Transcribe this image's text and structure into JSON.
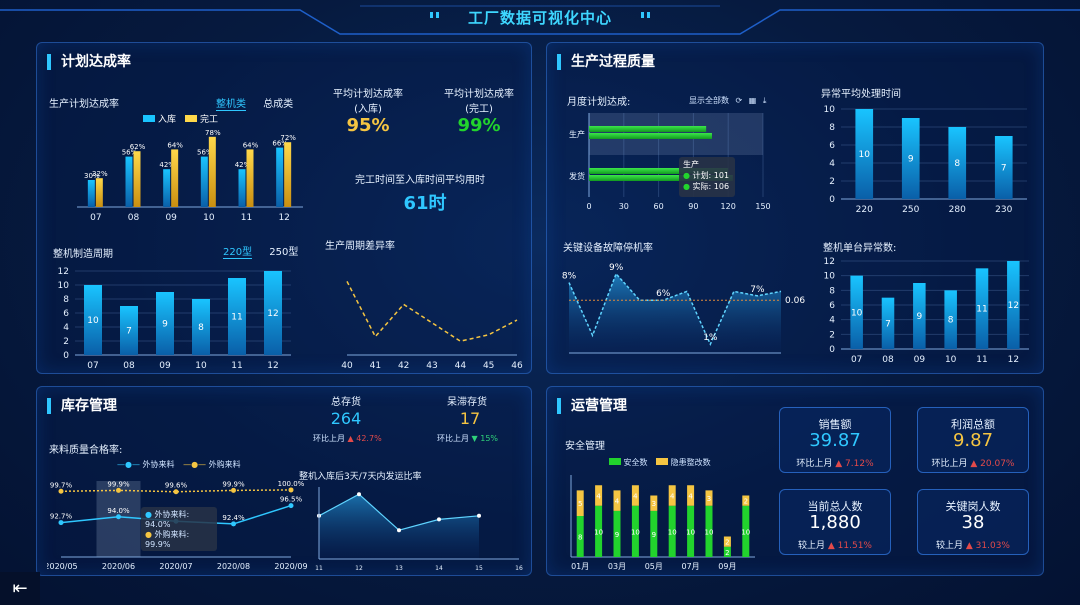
{
  "title": "工厂数据可视化中心",
  "colors": {
    "cyan": "#2fc7ff",
    "yellow": "#f5c542",
    "green": "#22d32d",
    "accent": "#3ed7ff"
  },
  "plan": {
    "heading": "计划达成率",
    "rate_chart": {
      "label": "生产计划达成率",
      "tabs": [
        "整机类",
        "总成类"
      ],
      "legend": [
        "入库",
        "完工"
      ]
    },
    "avg_in": {
      "label": "平均计划达成率\n(入库)",
      "value": "95%"
    },
    "avg_done": {
      "label": "平均计划达成率\n(完工)",
      "value": "99%"
    },
    "avg_time": {
      "label": "完工时间至入库时间平均用时",
      "value": "61时"
    },
    "cycle_chart": {
      "label": "整机制造周期",
      "tabs": [
        "220型",
        "250型"
      ]
    },
    "diff_chart": {
      "label": "生产周期差异率"
    }
  },
  "quality": {
    "heading": "生产过程质量",
    "monthly": {
      "label": "月度计划达成:",
      "toolbar_label": "显示全部数"
    },
    "tooltip": {
      "title": "生产",
      "plan": "计划: 101",
      "actual": "实际: 106"
    },
    "anomaly_time": {
      "label": "异常平均处理时间"
    },
    "fault": {
      "label": "关键设备故障停机率"
    },
    "unit_anomaly": {
      "label": "整机单台异常数:"
    }
  },
  "inventory": {
    "heading": "库存管理",
    "total": {
      "label": "总存货",
      "value": "264",
      "change_label": "环比上月",
      "change": "42.7%"
    },
    "stagnant": {
      "label": "呆滞存货",
      "value": "17",
      "change_label": "环比上月",
      "change": "15%"
    },
    "incoming": {
      "label": "来料质量合格率:",
      "legend": [
        "外协来料",
        "外购来料"
      ]
    },
    "tooltip": {
      "a": "外协来料: 94.0%",
      "b": "外购来料: 99.9%"
    },
    "ship": {
      "label": "整机入库后3天/7天内发运比率"
    }
  },
  "ops": {
    "heading": "运营管理",
    "safety": {
      "label": "安全管理",
      "legend": [
        "安全数",
        "隐患整改数"
      ]
    },
    "cards": [
      {
        "title": "销售额",
        "value": "39.87",
        "sub": "环比上月",
        "change": "7.12%",
        "color": "#2fc7ff"
      },
      {
        "title": "利润总额",
        "value": "9.87",
        "sub": "环比上月",
        "change": "20.07%",
        "color": "#f5c542"
      },
      {
        "title": "当前总人数",
        "value": "1,880",
        "sub": "较上月",
        "change": "11.51%",
        "color": "#ffffff"
      },
      {
        "title": "关键岗人数",
        "value": "38",
        "sub": "较上月",
        "change": "31.03%",
        "color": "#ffffff"
      }
    ]
  },
  "chart_data": [
    {
      "id": "plan_rate",
      "type": "bar",
      "categories": [
        "07",
        "08",
        "09",
        "10",
        "11",
        "12"
      ],
      "series": [
        {
          "name": "入库",
          "values": [
            30,
            56,
            42,
            56,
            42,
            66
          ],
          "labels": [
            "30%",
            "56%",
            "42%",
            "56%",
            "42%",
            "66%"
          ]
        },
        {
          "name": "完工",
          "values": [
            32,
            62,
            64,
            78,
            64,
            72
          ],
          "labels": [
            "32%",
            "62%",
            "64%",
            "78%",
            "64%",
            "72%"
          ]
        }
      ],
      "ylim": [
        0,
        80
      ]
    },
    {
      "id": "cycle",
      "type": "bar",
      "categories": [
        "07",
        "08",
        "09",
        "10",
        "11",
        "12"
      ],
      "values": [
        10,
        7,
        9,
        8,
        11,
        12
      ],
      "ylim": [
        0,
        12
      ],
      "yticks": [
        0,
        2,
        4,
        6,
        8,
        10,
        12
      ]
    },
    {
      "id": "diff",
      "type": "line",
      "categories": [
        "40",
        "41",
        "42",
        "43",
        "44",
        "45",
        "46"
      ],
      "values": [
        80,
        20,
        55,
        35,
        15,
        22,
        38
      ],
      "ylim": [
        0,
        100
      ]
    },
    {
      "id": "monthly",
      "type": "bar",
      "orientation": "horizontal",
      "categories": [
        "生产",
        "发货"
      ],
      "series": [
        {
          "name": "计划",
          "values": [
            101,
            120
          ]
        },
        {
          "name": "实际",
          "values": [
            106,
            124
          ]
        }
      ],
      "xlim": [
        0,
        150
      ],
      "xticks": [
        0,
        30,
        60,
        90,
        120,
        150
      ]
    },
    {
      "id": "anomaly_time",
      "type": "bar",
      "categories": [
        "220",
        "250",
        "280",
        "230"
      ],
      "values": [
        10,
        9,
        8,
        7
      ],
      "ylim": [
        0,
        10
      ],
      "yticks": [
        0,
        2,
        4,
        6,
        8,
        10
      ]
    },
    {
      "id": "fault",
      "type": "area",
      "values": [
        8,
        2,
        9,
        6,
        6,
        7,
        1,
        7,
        6.5,
        7
      ],
      "labels": {
        "0": "8%",
        "2": "9%",
        "4": "6%",
        "6": "1%",
        "8": "7%"
      },
      "markline": "0.06",
      "ylim": [
        0,
        10
      ]
    },
    {
      "id": "unit_anomaly",
      "type": "bar",
      "categories": [
        "07",
        "08",
        "09",
        "10",
        "11",
        "12"
      ],
      "values": [
        10,
        7,
        9,
        8,
        11,
        12
      ],
      "ylim": [
        0,
        12
      ],
      "yticks": [
        0,
        2,
        4,
        6,
        8,
        10,
        12
      ]
    },
    {
      "id": "incoming",
      "type": "line",
      "categories": [
        "2020/05",
        "2020/06",
        "2020/07",
        "2020/08",
        "2020/09"
      ],
      "series": [
        {
          "name": "外协来料",
          "values": [
            92.7,
            94.0,
            93.0,
            92.4,
            96.5
          ]
        },
        {
          "name": "外购来料",
          "values": [
            99.7,
            99.9,
            99.6,
            99.9,
            100.0
          ]
        }
      ],
      "labels_a": [
        "92.7%",
        "94.0%",
        "",
        "92.4%",
        "96.5%"
      ],
      "labels_b": [
        "99.7%",
        "99.9%",
        "99.6%",
        "99.9%",
        "100.0%"
      ],
      "ylim": [
        85,
        102
      ]
    },
    {
      "id": "ship",
      "type": "area",
      "categories": [
        "11",
        "12",
        "13",
        "14",
        "15",
        "16"
      ],
      "values": [
        6,
        9,
        4,
        5.5,
        6,
        null
      ],
      "ylim": [
        0,
        10
      ]
    },
    {
      "id": "safety",
      "type": "bar",
      "stacked": true,
      "categories": [
        "01月",
        "",
        "03月",
        "",
        "05月",
        "",
        "07月",
        "",
        "09月",
        ""
      ],
      "series": [
        {
          "name": "安全数",
          "values": [
            8,
            10,
            9,
            10,
            9,
            10,
            10,
            10,
            2,
            10
          ]
        },
        {
          "name": "隐患整改数",
          "values": [
            5,
            4,
            4,
            4,
            3,
            4,
            4,
            3,
            2,
            2
          ]
        }
      ]
    }
  ]
}
